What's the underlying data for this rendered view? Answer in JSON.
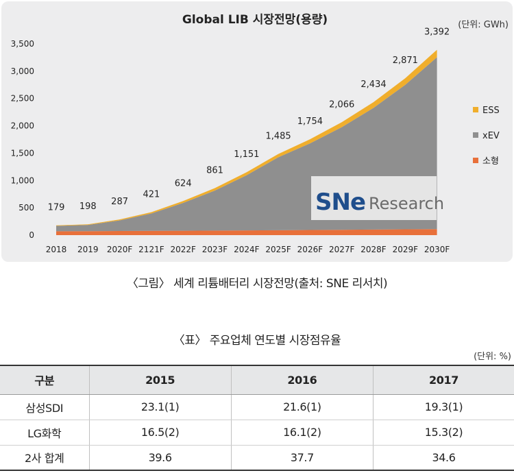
{
  "chart_data": {
    "type": "area",
    "title": "Global LIB 시장전망(용량)",
    "unit_label": "(단위: GWh)",
    "categories": [
      "2018",
      "2019",
      "2020F",
      "2121F",
      "2022F",
      "2023F",
      "2024F",
      "2025F",
      "2026F",
      "2027F",
      "2028F",
      "2029F",
      "2030F"
    ],
    "totals": [
      179,
      198,
      287,
      421,
      624,
      861,
      1151,
      1485,
      1754,
      2066,
      2434,
      2871,
      3392
    ],
    "series": [
      {
        "name": "소형",
        "color": "#e8703a",
        "values": [
          70,
          72,
          75,
          78,
          80,
          83,
          86,
          90,
          94,
          98,
          102,
          106,
          110
        ]
      },
      {
        "name": "xEV",
        "color": "#8f8f8f",
        "values": [
          99,
          114,
          194,
          318,
          509,
          733,
          1010,
          1335,
          1585,
          1878,
          2227,
          2645,
          3146
        ]
      },
      {
        "name": "ESS",
        "color": "#f0ae2c",
        "values": [
          10,
          12,
          18,
          25,
          35,
          45,
          55,
          60,
          75,
          90,
          105,
          120,
          136
        ]
      }
    ],
    "legend_order": [
      "ESS",
      "xEV",
      "소형"
    ],
    "legend_position": "right",
    "ylim": [
      0,
      3500
    ],
    "yticks": [
      0,
      500,
      1000,
      1500,
      2000,
      2500,
      3000,
      3500
    ],
    "ytick_labels": [
      "0",
      "500",
      "1,000",
      "1,500",
      "2,000",
      "2,500",
      "3,000",
      "3,500"
    ],
    "total_labels": [
      "179",
      "198",
      "287",
      "421",
      "624",
      "861",
      "1,151",
      "1,485",
      "1,754",
      "2,066",
      "2,434",
      "2,871",
      "3,392"
    ],
    "grid": false,
    "watermark": "SNE Research",
    "watermark_logo": "SNe",
    "watermark_text": "Research"
  },
  "figure_caption": "〈그림〉 세계 리튬배터리 시장전망(출처: SNE 리서치)",
  "table": {
    "title": "〈표〉 주요업체 연도별 시장점유율",
    "unit": "(단위: %)",
    "headers": [
      "구분",
      "2015",
      "2016",
      "2017"
    ],
    "rows": [
      [
        "삼성SDI",
        "23.1(1)",
        "21.6(1)",
        "19.3(1)"
      ],
      [
        "LG화학",
        "16.5(2)",
        "16.1(2)",
        "15.3(2)"
      ],
      [
        "2사 합계",
        "39.6",
        "37.7",
        "34.6"
      ]
    ]
  }
}
